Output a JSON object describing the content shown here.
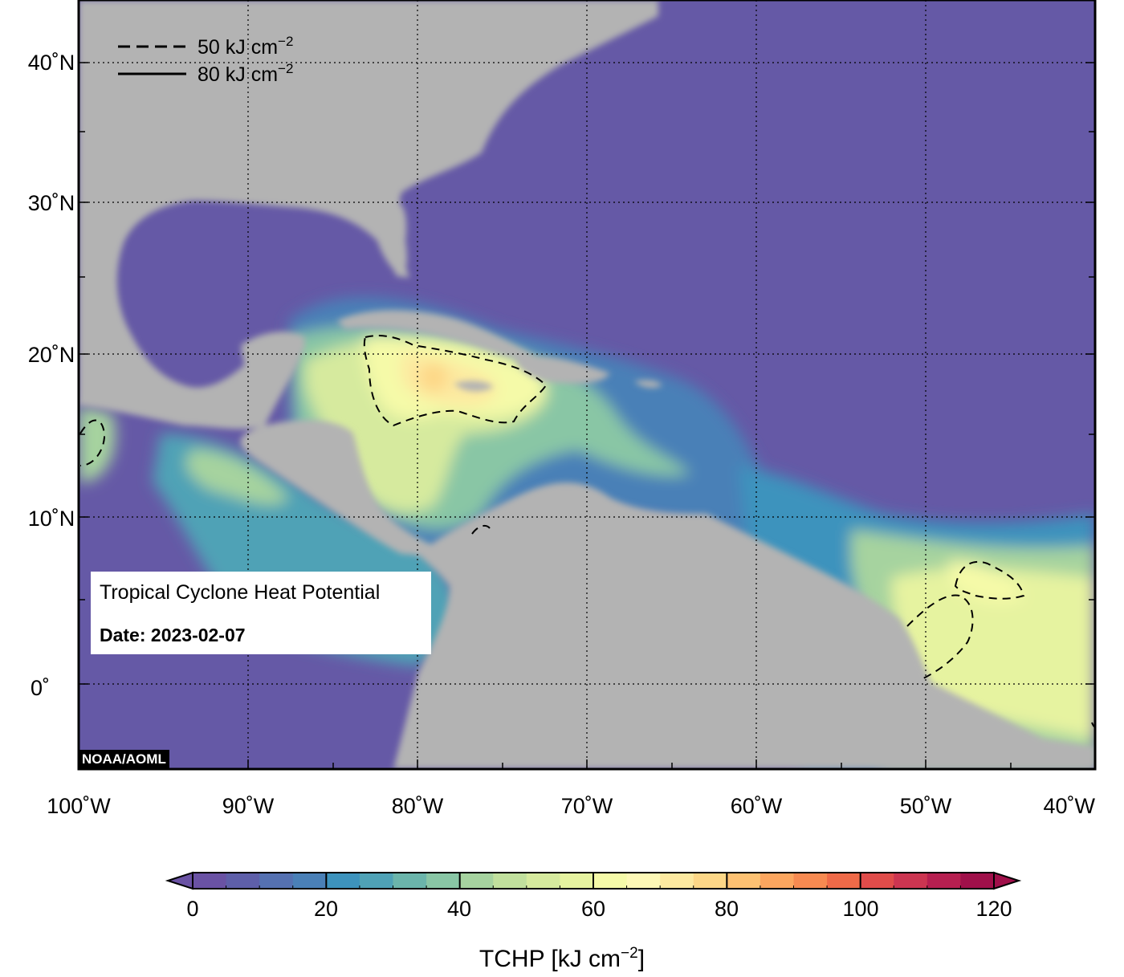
{
  "map": {
    "title": "Tropical Cyclone Heat Potential",
    "date_label": "Date: 2023-02-07",
    "credit": "NOAA/AOML",
    "lon_labels": [
      "100˚W",
      "90˚W",
      "80˚W",
      "70˚W",
      "60˚W",
      "50˚W",
      "40˚W"
    ],
    "lat_labels": [
      "40˚N",
      "30˚N",
      "20˚N",
      "10˚N",
      "0˚"
    ],
    "legend": [
      {
        "style": "dashed",
        "label": "50 kJ cm",
        "exponent": "−2"
      },
      {
        "style": "solid",
        "label": "80 kJ cm",
        "exponent": "−2"
      }
    ],
    "colors": {
      "ocean_low": "#6559a6",
      "land": "#b3b3b3",
      "frame": "#000000"
    }
  },
  "colorbar": {
    "title_prefix": "TCHP [kJ cm",
    "title_exponent": "−2",
    "title_suffix": "]",
    "tick_labels": [
      "0",
      "20",
      "40",
      "60",
      "80",
      "100",
      "120"
    ],
    "range": [
      0,
      120
    ],
    "step": 5,
    "colors": [
      "#6a52a4",
      "#5e5fa9",
      "#5571b1",
      "#4a80b7",
      "#3d93bd",
      "#4fa2b6",
      "#6bb5ab",
      "#89c6a5",
      "#a6d39f",
      "#c1e09d",
      "#d6ea9e",
      "#e6f3a0",
      "#f5faa8",
      "#fdf8b6",
      "#fde9a0",
      "#fdd787",
      "#fdc172",
      "#fca65f",
      "#f78a51",
      "#ef6a48",
      "#e04c4a",
      "#cc3551",
      "#b61f50",
      "#a0104a"
    ]
  }
}
